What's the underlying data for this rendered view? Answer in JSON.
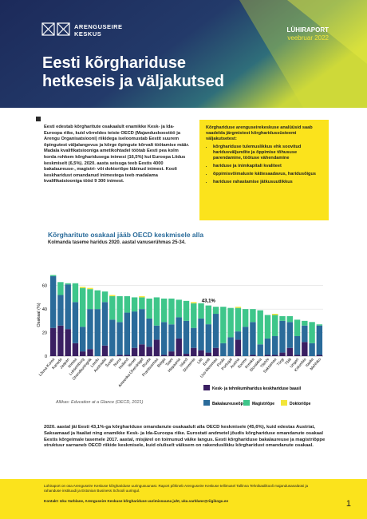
{
  "header": {
    "logo": "ARENGUSEIRE KESKUS",
    "series": "LÜHIRAPORT",
    "date": "veebruar 2022",
    "title": "Eesti kõrghariduse hetkeseis ja väljakutsed"
  },
  "intro": "Eesti edestab kõrgharitute osakaalult enamikke Kesk- ja Ida-Euroopa riike, kuid võrreldes teiste OECD (Majanduskoostöö ja Arengu Organisatsiooni) riikidega iseloomustab Eestit suurem õpingutest väljalangevus ja kõrge õpingute kõrvalt töötamise määr. Madala kvalifikatsiooniga ametikohtadel töötab Eesti pea kolm korda rohkem kõrgharidusega inimesi (16,5%) kui Euroopa Liidus keskmiselt (6,5%). 2020. aasta seisuga teeb Eestis 4000 bakalaureuse-, magistri- või doktoriõpe läbinud inimest. Kooli keskharidust omandanud inimestega teeb madalama kvalifikatsiooniga tööd 9 300 inimest.",
  "box": {
    "heading": "Kõrghariduse arenguseirekeskuse analüüsid saab vaadelda järgmistest kõrgharidussüsteemi väljakutsetest:",
    "items": [
      "kõrghariduse tulemuslikkus ehk soovitud haridusväljundite ja õppimise tõhususe parendamine, töötuse vähendamine",
      "hariduse ja inimkapitali kvaliteet",
      "õppimisvõimaluste kättesaadavus, haridusõigus",
      "hariduse rahastamise jätkusuutlikkus"
    ]
  },
  "chart_data": {
    "type": "stacked_bar",
    "title": "Kõrgharitute osakaal jääb OECD keskmisele alla",
    "subtitle": "Kolmanda taseme haridus 2020. aastal vanuserühmas 25-34.",
    "ylabel": "Osakaal (%)",
    "annotation": "43,1%",
    "source": "Allikas: Education at a Glance (OECD, 2021)",
    "ylim": [
      0,
      70
    ],
    "yticks": [
      0,
      20,
      40,
      60
    ],
    "grid": true,
    "categories": [
      "Lõuna-Korea",
      "Kanada",
      "Jaapan",
      "Iirimaa",
      "Luksemburg",
      "Ühendkuningriik",
      "Leedu",
      "Austraalia",
      "Šveits",
      "Norra",
      "Holland",
      "Iisrael",
      "Ameerika Ühendriigid",
      "Rootsi",
      "Prantsusmaa",
      "Belgia",
      "Taani",
      "Hispaania",
      "Island",
      "Sloveenia",
      "Läti",
      "Eesti",
      "Uus-Meremaa",
      "Poola",
      "Portugal",
      "Austria",
      "Soome",
      "Kreeka",
      "Slovakkia",
      "Tšehhi",
      "Saksamaa",
      "Türgi",
      "Tšiili",
      "Ungari",
      "Kolumbia",
      "Itaalia",
      "Mehhiko"
    ],
    "series": [
      {
        "name": "Kesk- ja tehnikumiharidus keskhariduse baasil",
        "color": "#3a1f62",
        "values": [
          24,
          26,
          23,
          11,
          4,
          6,
          0,
          9,
          0,
          1,
          1,
          7,
          10,
          8,
          14,
          1,
          4,
          15,
          2,
          7,
          5,
          3,
          7,
          0,
          0,
          14,
          0,
          1,
          0,
          1,
          1,
          3,
          7,
          1,
          12,
          0,
          1
        ]
      },
      {
        "name": "Bakalaureuseõpe",
        "color": "#2a6b9a",
        "values": [
          44,
          26,
          38,
          35,
          21,
          34,
          40,
          37,
          31,
          28,
          36,
          31,
          30,
          24,
          12,
          28,
          23,
          18,
          28,
          17,
          27,
          24.1,
          29,
          11,
          16,
          7,
          25,
          28,
          10,
          14,
          16,
          27,
          22,
          16,
          14,
          11,
          25
        ]
      },
      {
        "name": "Magistriõpe",
        "color": "#3ec68a",
        "values": [
          1,
          11,
          1,
          16,
          33,
          17,
          16,
          9,
          20,
          22,
          14,
          12,
          10,
          17,
          24,
          20,
          22,
          15,
          17,
          21,
          13,
          16,
          6,
          31,
          25,
          20,
          15,
          11,
          29,
          20,
          18,
          4,
          5,
          14,
          4,
          18,
          1
        ]
      },
      {
        "name": "Doktoriõpe",
        "color": "#f2e53a",
        "values": [
          0,
          0,
          0,
          0,
          1,
          1,
          0,
          0,
          1,
          0,
          0,
          0,
          1,
          0,
          0,
          0,
          0,
          0,
          0,
          1,
          0,
          0,
          0,
          0,
          0,
          1,
          0,
          0,
          0,
          0,
          1,
          0,
          0,
          0,
          0,
          0,
          0
        ]
      }
    ]
  },
  "body": "2020. aastal jäi Eesti 43,1%-ga kõrghariduse omandanute osakaalult alla OECD keskmisele (45,6%), kuid edestas Austriat, Saksamaad ja Itaaliat ning enamikke Kesk- ja Ida-Euroopa riike. Eurostati andmetel jõudis kõrghariduse omandanute osakaal Eestis kõrgeimale tasemele 2017. aastal, misjärel on toimunud väike langus. Eesti kõrghariduse bakalaureuse ja magistriõppe struktuur sarnaneb OECD riikide keskmisele, kuid oluliselt väiksem on rakenduslikku kõrgharidust omandanute osakaal.",
  "footer": {
    "note": "Lühiraport on osa Arenguseire Keskuse kõrghariduse uuringusuunast. Raport põhineb Arenguseire Keskuse tellimusel Tallinna Tehnikaülikooli majandusanalüüsi ja rahanduse instituudi ja Estonian Business Schooli uuringul.",
    "contact": "Kontakt: Uku Varblane, Arenguseire Keskuse kõrghariduse uurimissuuna juht, uku.varblane@riigikogu.ee",
    "page": "1"
  }
}
